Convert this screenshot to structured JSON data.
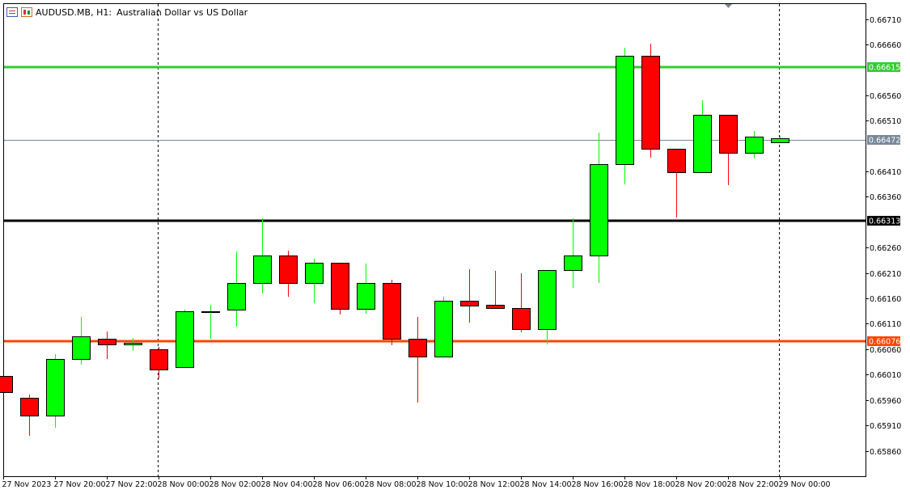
{
  "header": {
    "symbol": "AUDUSD.MB",
    "timeframe": "H1",
    "description": "Australian Dollar vs US Dollar",
    "icons": [
      "list-icon",
      "chart-bars-icon"
    ]
  },
  "colors": {
    "bull": "#00ff00",
    "bear": "#ff0000",
    "green_line": "#32cd32",
    "black_line": "#000000",
    "orange_line": "#ff4500",
    "current_line": "#778899"
  },
  "chart_data": {
    "type": "candlestick",
    "ylim": [
      0.6582,
      0.6673
    ],
    "y_ticks": [
      "0.66710",
      "0.66660",
      "0.66560",
      "0.66510",
      "0.66410",
      "0.66360",
      "0.66260",
      "0.66210",
      "0.66160",
      "0.66110",
      "0.66060",
      "0.66010",
      "0.65960",
      "0.65910",
      "0.65860"
    ],
    "x_tick_labels": [
      "27 Nov 2023",
      "27 Nov 20:00",
      "27 Nov 22:00",
      "28 Nov 00:00",
      "28 Nov 02:00",
      "28 Nov 04:00",
      "28 Nov 06:00",
      "28 Nov 08:00",
      "28 Nov 10:00",
      "28 Nov 12:00",
      "28 Nov 14:00",
      "28 Nov 16:00",
      "28 Nov 18:00",
      "28 Nov 20:00",
      "28 Nov 22:00",
      "29 Nov 00:00"
    ],
    "x_tick_candle_index": [
      0,
      2,
      4,
      6,
      8,
      10,
      12,
      14,
      16,
      18,
      20,
      22,
      24,
      26,
      28,
      30
    ],
    "day_separators_candle_index": [
      6,
      30
    ],
    "candles": [
      {
        "o": 0.66008,
        "h": 0.66008,
        "l": 0.65975,
        "c": 0.65975
      },
      {
        "o": 0.65965,
        "h": 0.6597,
        "l": 0.6589,
        "c": 0.6593
      },
      {
        "o": 0.6593,
        "h": 0.6605,
        "l": 0.65905,
        "c": 0.6604
      },
      {
        "o": 0.6604,
        "h": 0.66124,
        "l": 0.6603,
        "c": 0.66085
      },
      {
        "o": 0.6608,
        "h": 0.66095,
        "l": 0.6604,
        "c": 0.6607
      },
      {
        "o": 0.6607,
        "h": 0.66082,
        "l": 0.66057,
        "c": 0.66072
      },
      {
        "o": 0.6606,
        "h": 0.66064,
        "l": 0.66003,
        "c": 0.6602
      },
      {
        "o": 0.66024,
        "h": 0.66138,
        "l": 0.66024,
        "c": 0.66135
      },
      {
        "o": 0.66135,
        "h": 0.66147,
        "l": 0.6608,
        "c": 0.66135
      },
      {
        "o": 0.66137,
        "h": 0.66252,
        "l": 0.66105,
        "c": 0.6619
      },
      {
        "o": 0.6619,
        "h": 0.66318,
        "l": 0.6617,
        "c": 0.66245
      },
      {
        "o": 0.66245,
        "h": 0.66254,
        "l": 0.66163,
        "c": 0.6619
      },
      {
        "o": 0.6619,
        "h": 0.66238,
        "l": 0.6615,
        "c": 0.6623
      },
      {
        "o": 0.6623,
        "h": 0.6623,
        "l": 0.66128,
        "c": 0.6614
      },
      {
        "o": 0.6614,
        "h": 0.66228,
        "l": 0.6613,
        "c": 0.6619
      },
      {
        "o": 0.6619,
        "h": 0.66197,
        "l": 0.66068,
        "c": 0.6608
      },
      {
        "o": 0.6608,
        "h": 0.66124,
        "l": 0.65955,
        "c": 0.66045
      },
      {
        "o": 0.66045,
        "h": 0.66163,
        "l": 0.66045,
        "c": 0.66155
      },
      {
        "o": 0.66155,
        "h": 0.66218,
        "l": 0.66112,
        "c": 0.66145
      },
      {
        "o": 0.66148,
        "h": 0.66214,
        "l": 0.6614,
        "c": 0.66141
      },
      {
        "o": 0.66141,
        "h": 0.6621,
        "l": 0.66093,
        "c": 0.661
      },
      {
        "o": 0.661,
        "h": 0.66216,
        "l": 0.6607,
        "c": 0.66215
      },
      {
        "o": 0.66215,
        "h": 0.66317,
        "l": 0.6618,
        "c": 0.66245
      },
      {
        "o": 0.66245,
        "h": 0.66487,
        "l": 0.6619,
        "c": 0.66425
      },
      {
        "o": 0.66425,
        "h": 0.66653,
        "l": 0.66385,
        "c": 0.66637
      },
      {
        "o": 0.66637,
        "h": 0.66662,
        "l": 0.66437,
        "c": 0.66455
      },
      {
        "o": 0.66455,
        "h": 0.66455,
        "l": 0.6632,
        "c": 0.66408
      },
      {
        "o": 0.66408,
        "h": 0.6655,
        "l": 0.66408,
        "c": 0.66522
      },
      {
        "o": 0.66522,
        "h": 0.66522,
        "l": 0.66383,
        "c": 0.66446
      },
      {
        "o": 0.66446,
        "h": 0.6649,
        "l": 0.66436,
        "c": 0.66479
      },
      {
        "o": 0.66467,
        "h": 0.6648,
        "l": 0.66467,
        "c": 0.66475
      }
    ],
    "levels": [
      {
        "name": "green",
        "value": 0.66615,
        "label": "0.66615",
        "color": "#32cd32",
        "width": 3
      },
      {
        "name": "current",
        "value": 0.66472,
        "label": "0.66472",
        "color": "#778899",
        "width": 1
      },
      {
        "name": "black",
        "value": 0.66313,
        "label": "0.66313",
        "color": "#000000",
        "width": 3
      },
      {
        "name": "orange",
        "value": 0.66076,
        "label": "0.66076",
        "color": "#ff4500",
        "width": 3
      }
    ]
  }
}
